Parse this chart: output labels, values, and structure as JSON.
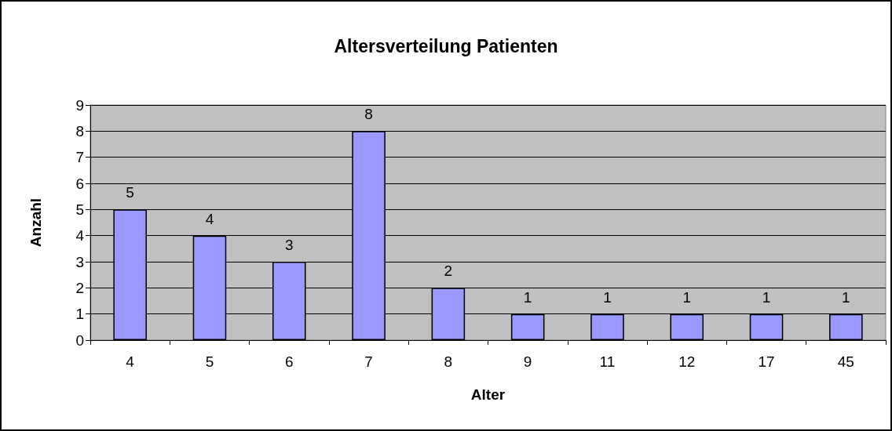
{
  "chart_data": {
    "type": "bar",
    "title": "Altersverteilung Patienten",
    "xlabel": "Alter",
    "ylabel": "Anzahl",
    "categories": [
      "4",
      "5",
      "6",
      "7",
      "8",
      "9",
      "11",
      "12",
      "17",
      "45"
    ],
    "values": [
      5,
      4,
      3,
      8,
      2,
      1,
      1,
      1,
      1,
      1
    ],
    "color": "#9999ff",
    "ylim": [
      0,
      9
    ],
    "yticks": [
      0,
      1,
      2,
      3,
      4,
      5,
      6,
      7,
      8,
      9
    ],
    "grid": "y",
    "data_labels": true
  }
}
